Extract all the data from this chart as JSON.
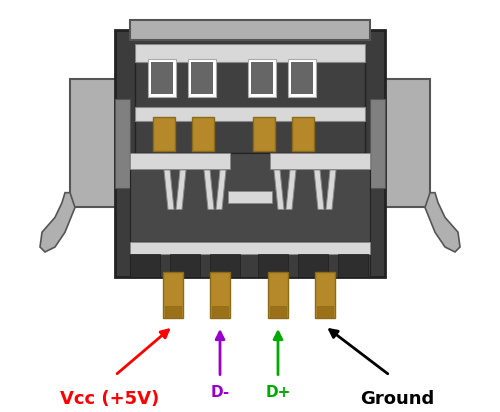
{
  "bg_color": "#ffffff",
  "gold": "#b5882a",
  "gold_edge": "#8b6a18",
  "dark_body": "#3c3c3c",
  "dark_body2": "#484848",
  "dark_edge": "#222222",
  "silver": "#c0c0c0",
  "silver2": "#d8d8d8",
  "silver_edge": "#888888",
  "light_gray": "#b0b0b0",
  "mid_gray": "#808080",
  "dark_gray": "#555555",
  "pin_colors": [
    "#ff0000",
    "#9900cc",
    "#00aa00",
    "#000000"
  ],
  "pin_labels": [
    "Vcc (+5V)",
    "D-",
    "D+",
    "Ground"
  ],
  "fig_w": 5.0,
  "fig_h": 4.12
}
